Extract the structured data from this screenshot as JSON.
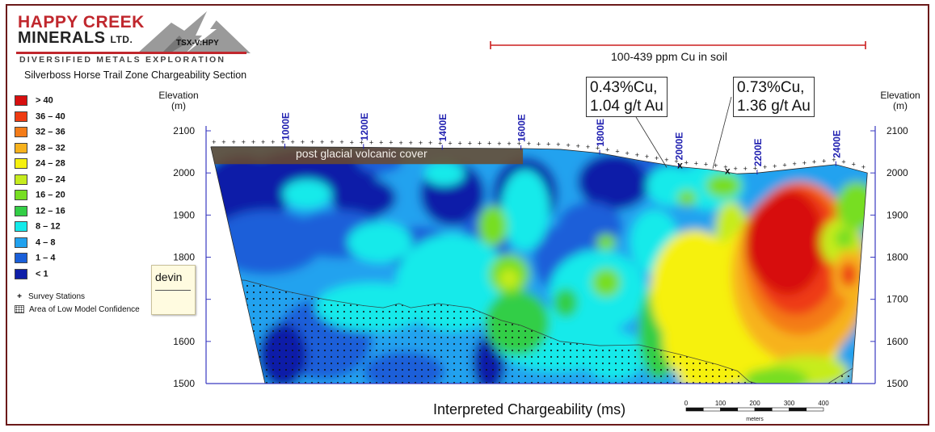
{
  "logo": {
    "line1": "HAPPY CREEK",
    "line2": "MINERALS",
    "ltd": "LTD.",
    "tagline": "DIVERSIFIED METALS EXPLORATION",
    "ticker": "TSX-V:HPY"
  },
  "subtitle": "Silverboss Horse Trail Zone Chargeability Section",
  "note": {
    "text": "devin"
  },
  "colors": {
    "frame": "#6b1a1a",
    "station_label": "#1f1fb0",
    "soil_line": "#cc1f1f"
  },
  "legend": {
    "items": [
      {
        "label": "> 40",
        "color": "#d70f0f"
      },
      {
        "label": "36 – 40",
        "color": "#ee3b12"
      },
      {
        "label": "32 – 36",
        "color": "#f47c18"
      },
      {
        "label": "28 – 32",
        "color": "#f7b21d"
      },
      {
        "label": "24 – 28",
        "color": "#f6f10f"
      },
      {
        "label": "20 – 24",
        "color": "#c6ec1e"
      },
      {
        "label": "16 – 20",
        "color": "#77de22"
      },
      {
        "label": "12 – 16",
        "color": "#33ce46"
      },
      {
        "label": "8 – 12",
        "color": "#14eaea"
      },
      {
        "label": "4 – 8",
        "color": "#21a2ef"
      },
      {
        "label": "1 – 4",
        "color": "#1a5fd9"
      },
      {
        "label": "< 1",
        "color": "#0f1fa8"
      }
    ],
    "symbols": [
      {
        "label": "Survey Stations",
        "icon": "plus-icon"
      },
      {
        "label": "Area of Low Model Confidence",
        "icon": "dot-pattern-icon"
      }
    ]
  },
  "annotations": {
    "soil": "100-439 ppm Cu in soil",
    "cover": "post glacial volcanic cover",
    "callout1": "0.43%Cu,\n1.04 g/t Au",
    "callout2": "0.73%Cu,\n1.36 g/t Au"
  },
  "chart_data": {
    "type": "heatmap",
    "title": "Silverboss Horse Trail Zone Chargeability Section",
    "xlabel": "Interpreted Chargeability (ms)",
    "ylabel": "Elevation (m)",
    "ylabel_left": [
      "Elevation",
      "(m)"
    ],
    "ylabel_right": [
      "Elevation",
      "(m)"
    ],
    "ylim": [
      1500,
      2100
    ],
    "yticks": [
      2100,
      2000,
      1900,
      1800,
      1700,
      1600,
      1500
    ],
    "yticks_labels_left": [
      2100,
      2000,
      1900,
      1800,
      1600,
      1500
    ],
    "yticks_labels_right": [
      2100,
      2000,
      1900,
      1800,
      1700,
      1600,
      1500
    ],
    "xlim": [
      800,
      2500
    ],
    "station_ticks": [
      1000,
      1200,
      1400,
      1600,
      1800,
      2000,
      2200,
      2400
    ],
    "station_labels": [
      "1000E",
      "1200E",
      "1400E",
      "1600E",
      "1800E",
      "2000E",
      "2200E",
      "2400E"
    ],
    "scale": {
      "labels": [
        "0",
        "100",
        "200",
        "300",
        "400"
      ],
      "unit": "meters"
    },
    "topography": [
      [
        812,
        2062
      ],
      [
        900,
        2062
      ],
      [
        1000,
        2062
      ],
      [
        1200,
        2061
      ],
      [
        1400,
        2059
      ],
      [
        1600,
        2058
      ],
      [
        1700,
        2056
      ],
      [
        1800,
        2047
      ],
      [
        1900,
        2030
      ],
      [
        2000,
        2015
      ],
      [
        2080,
        2008
      ],
      [
        2150,
        1998
      ],
      [
        2200,
        2000
      ],
      [
        2300,
        2010
      ],
      [
        2400,
        2020
      ],
      [
        2480,
        2000
      ]
    ],
    "bottom_limits": [
      [
        950,
        1500
      ],
      [
        2440,
        1500
      ]
    ]
  }
}
